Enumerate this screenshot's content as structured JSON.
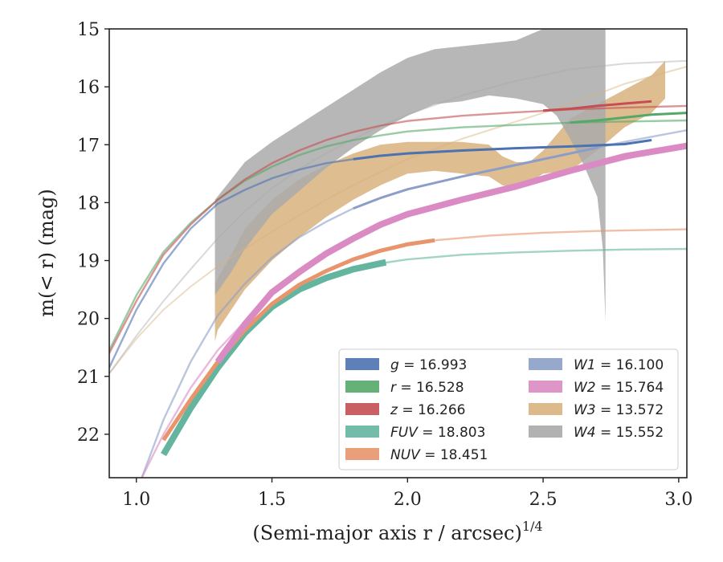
{
  "chart_data": {
    "type": "line",
    "xlabel": "(Semi-major axis r / arcsec)",
    "xlabel_sup": "1/4",
    "ylabel": "m(< r) (mag)",
    "xlim": [
      0.9,
      3.03
    ],
    "ylim": [
      22.75,
      15.0
    ],
    "y_inverted": true,
    "grid": false,
    "legend_position": "lower-right",
    "x_ticks": [
      {
        "value": 1.0,
        "label": "1.0"
      },
      {
        "value": 1.5,
        "label": "1.5"
      },
      {
        "value": 2.0,
        "label": "2.0"
      },
      {
        "value": 2.5,
        "label": "2.5"
      },
      {
        "value": 3.0,
        "label": "3.0"
      }
    ],
    "y_ticks": [
      {
        "value": 15,
        "label": "15"
      },
      {
        "value": 16,
        "label": "16"
      },
      {
        "value": 17,
        "label": "17"
      },
      {
        "value": 18,
        "label": "18"
      },
      {
        "value": 19,
        "label": "19"
      },
      {
        "value": 20,
        "label": "20"
      },
      {
        "value": 21,
        "label": "21"
      },
      {
        "value": 22,
        "label": "22"
      }
    ],
    "series": [
      {
        "band": "g",
        "name": "g = 16.993",
        "color": "#4C72B0",
        "legend_name": "g",
        "legend_value": "16.993",
        "thin": {
          "x": [
            0.9,
            1.0,
            1.1,
            1.2,
            1.3,
            1.4,
            1.5,
            1.6,
            1.7,
            1.8,
            1.9,
            2.0,
            2.2,
            2.4,
            2.6,
            2.8,
            2.9
          ],
          "y": [
            20.85,
            19.85,
            19.05,
            18.45,
            18.02,
            17.78,
            17.58,
            17.43,
            17.32,
            17.25,
            17.19,
            17.15,
            17.1,
            17.06,
            17.03,
            16.99,
            16.92
          ]
        },
        "thick": {
          "x": [
            1.8,
            1.9,
            2.0,
            2.2,
            2.4,
            2.6,
            2.8,
            2.9
          ],
          "y": [
            17.25,
            17.19,
            17.15,
            17.1,
            17.06,
            17.03,
            16.99,
            16.92
          ],
          "width": 2
        }
      },
      {
        "band": "r",
        "name": "r = 16.528",
        "color": "#55A868",
        "legend_name": "r",
        "legend_value": "16.528",
        "thin": {
          "x": [
            0.9,
            1.0,
            1.1,
            1.2,
            1.3,
            1.4,
            1.5,
            1.6,
            1.7,
            1.8,
            1.9,
            2.0,
            2.2,
            2.4,
            2.6,
            2.8,
            3.03
          ],
          "y": [
            20.55,
            19.6,
            18.85,
            18.35,
            17.95,
            17.62,
            17.38,
            17.18,
            17.03,
            16.92,
            16.84,
            16.77,
            16.7,
            16.66,
            16.62,
            16.6,
            16.58
          ]
        },
        "thick": {
          "x": [
            2.6,
            2.7,
            2.8,
            2.9,
            3.03
          ],
          "y": [
            16.62,
            16.58,
            16.53,
            16.48,
            16.45
          ],
          "width": 2
        }
      },
      {
        "band": "z",
        "name": "z = 16.266",
        "color": "#C44E52",
        "legend_name": "z",
        "legend_value": "16.266",
        "thin": {
          "x": [
            0.9,
            1.0,
            1.1,
            1.2,
            1.3,
            1.4,
            1.5,
            1.6,
            1.7,
            1.8,
            1.9,
            2.0,
            2.2,
            2.4,
            2.6,
            2.8,
            3.03
          ],
          "y": [
            20.6,
            19.7,
            18.9,
            18.38,
            17.95,
            17.6,
            17.32,
            17.1,
            16.92,
            16.78,
            16.67,
            16.59,
            16.5,
            16.44,
            16.39,
            16.36,
            16.33
          ]
        },
        "thick": {
          "x": [
            2.5,
            2.6,
            2.7,
            2.8,
            2.9
          ],
          "y": [
            16.41,
            16.38,
            16.33,
            16.29,
            16.25
          ],
          "width": 2
        }
      },
      {
        "band": "FUV",
        "name": "FUV = 18.803",
        "color": "#64B5A0",
        "legend_name": "FUV",
        "legend_value": "18.803",
        "thin": {
          "x": [
            1.1,
            1.2,
            1.3,
            1.4,
            1.5,
            1.6,
            1.7,
            1.8,
            1.9,
            2.0,
            2.2,
            2.4,
            2.6,
            2.8,
            3.03
          ],
          "y": [
            22.35,
            21.55,
            20.85,
            20.25,
            19.8,
            19.5,
            19.3,
            19.15,
            19.05,
            18.98,
            18.9,
            18.86,
            18.83,
            18.81,
            18.8
          ]
        },
        "thick": {
          "x": [
            1.1,
            1.2,
            1.3,
            1.4,
            1.5,
            1.6,
            1.7,
            1.8,
            1.92
          ],
          "y": [
            22.35,
            21.55,
            20.85,
            20.25,
            19.8,
            19.5,
            19.3,
            19.15,
            19.03
          ],
          "width": 7
        }
      },
      {
        "band": "NUV",
        "name": "NUV = 18.451",
        "color": "#E8956D",
        "legend_name": "NUV",
        "legend_value": "18.451",
        "thin": {
          "x": [
            1.1,
            1.2,
            1.3,
            1.4,
            1.5,
            1.6,
            1.7,
            1.8,
            1.9,
            2.0,
            2.1,
            2.3,
            2.5,
            2.7,
            3.03
          ],
          "y": [
            22.1,
            21.4,
            20.75,
            20.2,
            19.75,
            19.42,
            19.18,
            18.98,
            18.83,
            18.72,
            18.65,
            18.57,
            18.52,
            18.49,
            18.46
          ]
        },
        "thick": {
          "x": [
            1.1,
            1.2,
            1.3,
            1.4,
            1.5,
            1.6,
            1.7,
            1.8,
            1.9,
            2.0,
            2.1
          ],
          "y": [
            22.1,
            21.4,
            20.75,
            20.2,
            19.75,
            19.42,
            19.18,
            18.98,
            18.83,
            18.72,
            18.65
          ],
          "width": 4
        }
      },
      {
        "band": "W1",
        "name": "W1 = 16.100",
        "color": "#8C9EC8",
        "legend_name": "W1",
        "legend_value": "16.100",
        "thin": {
          "x": [
            1.02,
            1.1,
            1.2,
            1.3,
            1.4,
            1.5,
            1.6,
            1.7,
            1.8,
            1.9,
            2.0,
            2.2,
            2.4,
            2.6,
            2.8,
            3.03
          ],
          "y": [
            22.75,
            21.75,
            20.75,
            19.95,
            19.4,
            18.95,
            18.6,
            18.33,
            18.1,
            17.92,
            17.77,
            17.55,
            17.35,
            17.15,
            16.95,
            16.75
          ]
        },
        "thick": {
          "x": [
            1.8,
            1.9,
            2.0,
            2.2,
            2.4,
            2.6,
            2.7
          ],
          "y": [
            18.1,
            17.92,
            17.77,
            17.55,
            17.35,
            17.15,
            17.05
          ],
          "width": 2
        }
      },
      {
        "band": "W2",
        "name": "W2 = 15.764",
        "color": "#DA8BC3",
        "legend_name": "W2",
        "legend_value": "15.764",
        "thin": {
          "x": [
            1.02,
            1.1,
            1.2,
            1.3,
            1.4,
            1.5,
            1.6,
            1.7,
            1.8,
            1.9,
            2.0,
            2.2,
            2.4,
            2.6,
            2.8,
            3.03
          ],
          "y": [
            22.75,
            22.0,
            21.2,
            20.55,
            20.05,
            19.6,
            19.25,
            18.92,
            18.65,
            18.42,
            18.22,
            17.95,
            17.72,
            17.48,
            17.25,
            17.0
          ]
        },
        "thick": {
          "x": [
            1.3,
            1.4,
            1.5,
            1.6,
            1.7,
            1.8,
            1.9,
            2.0,
            2.2,
            2.4,
            2.6,
            2.8,
            3.03
          ],
          "y": [
            20.75,
            20.1,
            19.55,
            19.2,
            18.88,
            18.62,
            18.38,
            18.2,
            17.95,
            17.72,
            17.45,
            17.2,
            17.02
          ],
          "width": 7
        }
      }
    ],
    "bands": [
      {
        "band": "W3",
        "name": "W3 = 13.572",
        "color": "#D8B27E",
        "legend_name": "W3",
        "legend_value": "13.572",
        "thin": {
          "x": [
            0.9,
            1.0,
            1.1,
            1.2,
            1.3,
            1.4,
            1.5,
            1.6,
            1.7,
            1.8,
            1.9,
            2.0,
            2.2,
            2.4,
            2.6,
            2.8,
            3.03
          ],
          "y": [
            20.95,
            20.35,
            19.85,
            19.45,
            19.1,
            18.8,
            18.5,
            18.22,
            17.95,
            17.7,
            17.47,
            17.25,
            16.9,
            16.6,
            16.3,
            15.95,
            15.65
          ]
        },
        "x": [
          1.29,
          1.3,
          1.35,
          1.4,
          1.5,
          1.6,
          1.7,
          1.8,
          1.9,
          2.0,
          2.1,
          2.2,
          2.3,
          2.35,
          2.4,
          2.45,
          2.5,
          2.6,
          2.7,
          2.8,
          2.9,
          2.95
        ],
        "lo": [
          19.4,
          19.3,
          18.9,
          18.45,
          17.95,
          17.6,
          17.35,
          17.15,
          17.0,
          16.95,
          16.95,
          16.95,
          17.0,
          17.2,
          17.3,
          17.3,
          17.1,
          16.55,
          16.3,
          16.05,
          15.8,
          15.55
        ],
        "hi": [
          20.4,
          20.2,
          19.85,
          19.5,
          19.0,
          18.6,
          18.25,
          17.95,
          17.7,
          17.5,
          17.45,
          17.5,
          17.55,
          17.7,
          17.75,
          17.65,
          17.5,
          17.45,
          17.1,
          16.7,
          16.45,
          16.2
        ]
      },
      {
        "band": "W4",
        "name": "W4 = 15.552",
        "color": "#AAAAAA",
        "legend_name": "W4",
        "legend_value": "15.552",
        "thin": {
          "x": [
            0.9,
            1.0,
            1.1,
            1.2,
            1.3,
            1.4,
            1.5,
            1.6,
            1.7,
            1.8,
            1.9,
            2.0,
            2.2,
            2.4,
            2.6,
            2.8,
            3.03
          ],
          "y": [
            20.95,
            20.3,
            19.7,
            19.15,
            18.62,
            18.15,
            17.75,
            17.42,
            17.15,
            16.9,
            16.68,
            16.48,
            16.15,
            15.9,
            15.7,
            15.6,
            15.55
          ]
        },
        "x": [
          1.29,
          1.35,
          1.4,
          1.5,
          1.6,
          1.7,
          1.8,
          1.9,
          2.0,
          2.1,
          2.2,
          2.3,
          2.4,
          2.5,
          2.55,
          2.6,
          2.65,
          2.7,
          2.72,
          2.73
        ],
        "lo": [
          17.95,
          17.6,
          17.3,
          16.95,
          16.65,
          16.35,
          16.05,
          15.75,
          15.5,
          15.35,
          15.3,
          15.25,
          15.2,
          15.0,
          15.0,
          15.0,
          15.0,
          15.0,
          15.0,
          15.0
        ],
        "hi": [
          19.6,
          19.2,
          18.8,
          18.2,
          17.8,
          17.4,
          17.05,
          16.75,
          16.5,
          16.3,
          16.25,
          16.15,
          16.2,
          16.3,
          16.5,
          16.9,
          17.35,
          17.9,
          18.8,
          20.05
        ]
      }
    ],
    "legend_left": [
      "g",
      "r",
      "z",
      "FUV",
      "NUV"
    ],
    "legend_right": [
      "W1",
      "W2",
      "W3",
      "W4"
    ]
  }
}
